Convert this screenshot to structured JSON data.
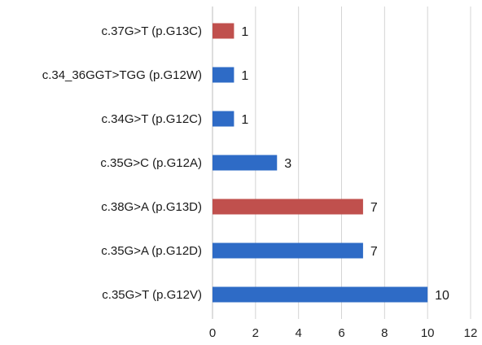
{
  "chart_data": {
    "type": "bar",
    "orientation": "horizontal",
    "categories": [
      "c.37G>T (p.G13C)",
      "c.34_36GGT>TGG (p.G12W)",
      "c.34G>T (p.G12C)",
      "c.35G>C (p.G12A)",
      "c.38G>A (p.G13D)",
      "c.35G>A (p.G12D)",
      "c.35G>T (p.G12V)"
    ],
    "values": [
      1,
      1,
      1,
      3,
      7,
      7,
      10
    ],
    "bar_colors": [
      "#c0504d",
      "#2e6bc6",
      "#2e6bc6",
      "#2e6bc6",
      "#c0504d",
      "#2e6bc6",
      "#2e6bc6"
    ],
    "data_labels": [
      "1",
      "1",
      "1",
      "3",
      "7",
      "7",
      "10"
    ],
    "title": "",
    "xlabel": "",
    "ylabel": "",
    "xlim": [
      0,
      12
    ],
    "x_ticks": [
      0,
      2,
      4,
      6,
      8,
      10,
      12
    ],
    "x_tick_labels": [
      "0",
      "2",
      "4",
      "6",
      "8",
      "10",
      "12"
    ],
    "grid": "vertical",
    "legend": "none"
  }
}
